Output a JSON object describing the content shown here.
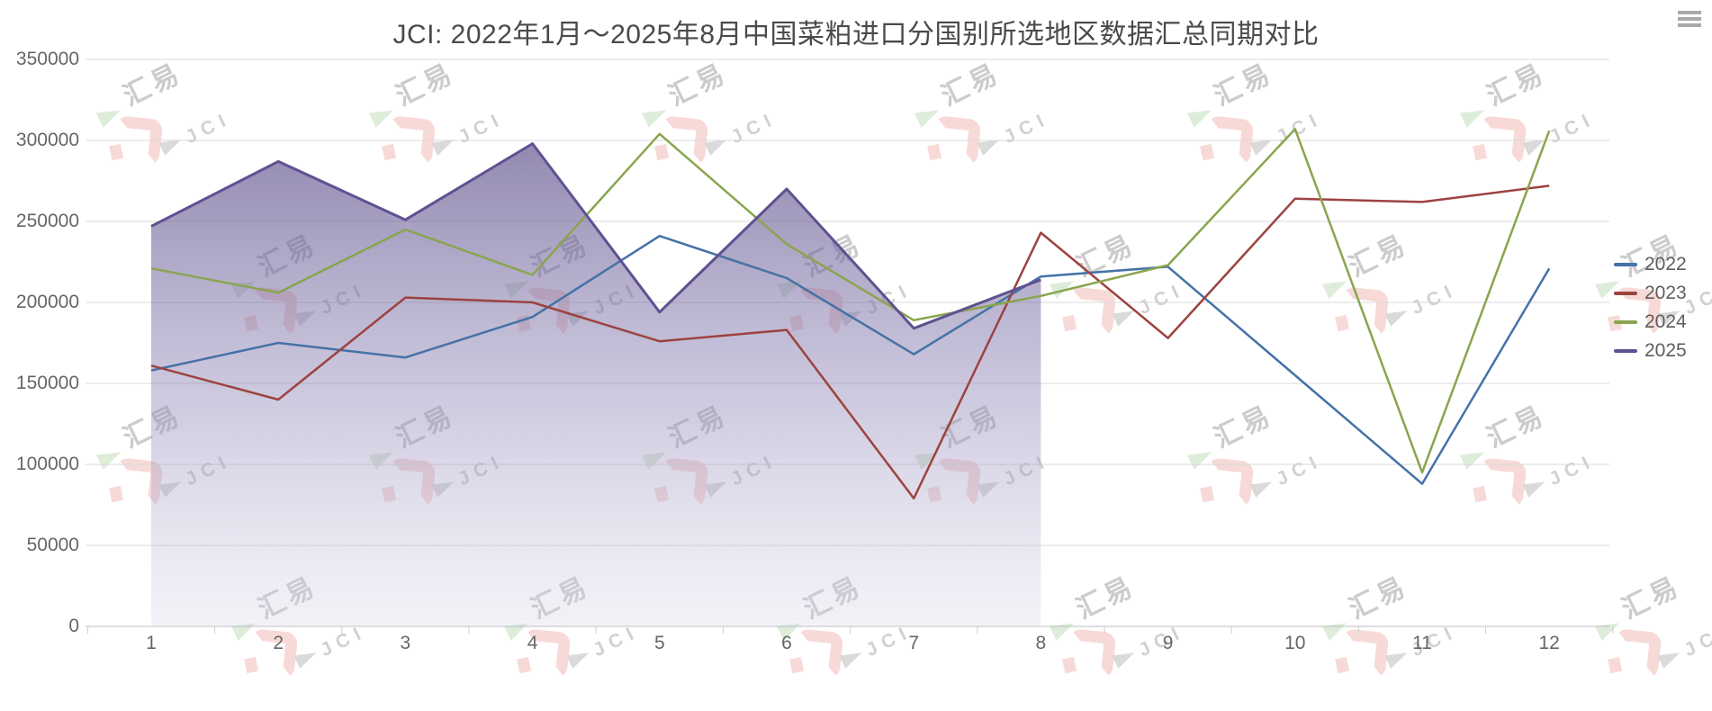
{
  "title": "JCI: 2022年1月～2025年8月中国菜粕进口分国别所选地区数据汇总同期对比",
  "menu_icon": "hamburger-menu-icon",
  "watermark": {
    "text_cn": "汇易",
    "text_en": "JCI"
  },
  "legend": {
    "position": "right",
    "items": [
      {
        "label": "2022",
        "color": "#4572A7"
      },
      {
        "label": "2023",
        "color": "#9C4340"
      },
      {
        "label": "2024",
        "color": "#89A54E"
      },
      {
        "label": "2025",
        "color": "#5F5191"
      }
    ]
  },
  "chart_data": {
    "type": "line",
    "title": "JCI: 2022年1月～2025年8月中国菜粕进口分国别所选地区数据汇总同期对比",
    "xlabel": "",
    "ylabel": "",
    "categories": [
      "1",
      "2",
      "3",
      "4",
      "5",
      "6",
      "7",
      "8",
      "9",
      "10",
      "11",
      "12"
    ],
    "yticks": [
      "350000",
      "300000",
      "250000",
      "200000",
      "150000",
      "100000",
      "50000",
      "0"
    ],
    "ylim": [
      0,
      350000
    ],
    "grid": true,
    "legend_position": "right",
    "series": [
      {
        "name": "2022",
        "color": "#4572A7",
        "style": "line",
        "values": [
          158000,
          175000,
          166000,
          191000,
          241000,
          215000,
          168000,
          216000,
          222000,
          155000,
          88000,
          221000
        ]
      },
      {
        "name": "2023",
        "color": "#9C4340",
        "style": "line",
        "values": [
          161000,
          140000,
          203000,
          200000,
          176000,
          183000,
          79000,
          243000,
          178000,
          264000,
          262000,
          272000
        ]
      },
      {
        "name": "2024",
        "color": "#89A54E",
        "style": "line",
        "values": [
          221000,
          206000,
          245000,
          217000,
          304000,
          236000,
          189000,
          204000,
          223000,
          307000,
          95000,
          306000
        ]
      },
      {
        "name": "2025",
        "color": "#5F5191",
        "style": "area",
        "values": [
          247000,
          287000,
          251000,
          298000,
          194000,
          270000,
          184000,
          214000
        ]
      }
    ]
  }
}
